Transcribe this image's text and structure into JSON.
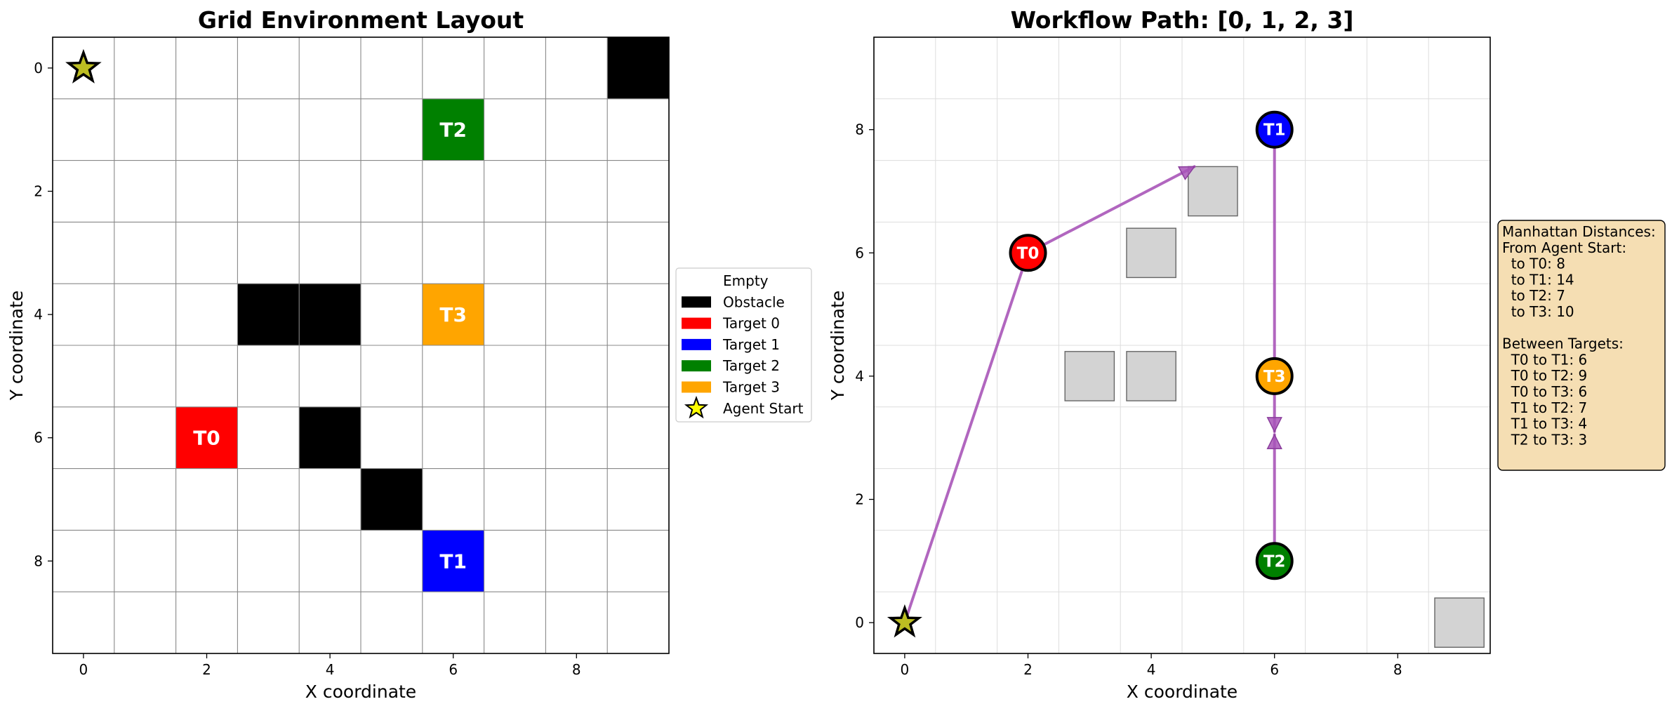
{
  "colors": {
    "obstacle": "#000000",
    "target0": "#ff0000",
    "target1": "#0000ff",
    "target2": "#008000",
    "target3": "#ffa500",
    "agent": "#bcbd22",
    "legend_star": "#ffff00",
    "path": "#a855b8",
    "unknown_obstacle": "#d3d3d3",
    "textbox_bg": "#f5deb3"
  },
  "chart_data": [
    {
      "type": "heatmap",
      "title": "Grid Environment Layout",
      "xlabel": "X coordinate",
      "ylabel": "Y coordinate",
      "grid_size": [
        10,
        10
      ],
      "xlim": [
        -0.5,
        9.5
      ],
      "ylim": [
        9.5,
        -0.5
      ],
      "xticks": [
        "0",
        "2",
        "4",
        "6",
        "8"
      ],
      "yticks": [
        "0",
        "2",
        "4",
        "6",
        "8"
      ],
      "grid": true,
      "obstacles": [
        [
          9,
          0
        ],
        [
          3,
          4
        ],
        [
          4,
          4
        ],
        [
          4,
          6
        ],
        [
          5,
          7
        ]
      ],
      "targets": [
        {
          "label": "T0",
          "x": 2,
          "y": 6,
          "color_key": "target0"
        },
        {
          "label": "T1",
          "x": 6,
          "y": 8,
          "color_key": "target1"
        },
        {
          "label": "T2",
          "x": 6,
          "y": 1,
          "color_key": "target2"
        },
        {
          "label": "T3",
          "x": 6,
          "y": 4,
          "color_key": "target3"
        }
      ],
      "agent_start": {
        "x": 0,
        "y": 0
      },
      "legend_position": "right",
      "legend": [
        {
          "label": "Empty",
          "swatch": "empty"
        },
        {
          "label": "Obstacle",
          "swatch": "obstacle"
        },
        {
          "label": "Target 0",
          "swatch": "target0"
        },
        {
          "label": "Target 1",
          "swatch": "target1"
        },
        {
          "label": "Target 2",
          "swatch": "target2"
        },
        {
          "label": "Target 3",
          "swatch": "target3"
        },
        {
          "label": "Agent Start",
          "swatch": "star"
        }
      ]
    },
    {
      "type": "scatter",
      "title": "Workflow Path: [0, 1, 2, 3]",
      "xlabel": "X coordinate",
      "ylabel": "Y coordinate",
      "xlim": [
        -0.5,
        9.5
      ],
      "ylim": [
        -0.5,
        9.5
      ],
      "xticks": [
        "0",
        "2",
        "4",
        "6",
        "8"
      ],
      "yticks": [
        "0",
        "2",
        "4",
        "6",
        "8"
      ],
      "grid": true,
      "agent_start": {
        "x": 0,
        "y": 0
      },
      "targets": [
        {
          "label": "T0",
          "x": 2,
          "y": 6,
          "color_key": "target0"
        },
        {
          "label": "T1",
          "x": 6,
          "y": 8,
          "color_key": "target1"
        },
        {
          "label": "T2",
          "x": 6,
          "y": 1,
          "color_key": "target2"
        },
        {
          "label": "T3",
          "x": 6,
          "y": 4,
          "color_key": "target3"
        }
      ],
      "obstacles_display": [
        [
          5,
          7
        ],
        [
          4,
          6
        ],
        [
          3,
          4
        ],
        [
          4,
          4
        ],
        [
          9,
          0
        ]
      ],
      "path_segments": [
        {
          "from": [
            0,
            0
          ],
          "to": [
            2,
            6
          ]
        },
        {
          "from": [
            2,
            6
          ],
          "to": [
            4.7,
            7.4
          ],
          "arrow": true
        },
        {
          "from": [
            6,
            8
          ],
          "to": [
            6,
            4
          ]
        },
        {
          "from": [
            6,
            4
          ],
          "to": [
            6,
            3.1
          ],
          "arrow": true
        },
        {
          "from": [
            6,
            1
          ],
          "to": [
            6,
            3.05
          ],
          "arrow": true
        }
      ],
      "annotation": [
        "Manhattan Distances:",
        "From Agent Start:",
        "  to T0: 8",
        "  to T1: 14",
        "  to T2: 7",
        "  to T3: 10",
        "",
        "Between Targets:",
        "  T0 to T1: 6",
        "  T0 to T2: 9",
        "  T0 to T3: 6",
        "  T1 to T2: 7",
        "  T1 to T3: 4",
        "  T2 to T3: 3"
      ]
    }
  ]
}
